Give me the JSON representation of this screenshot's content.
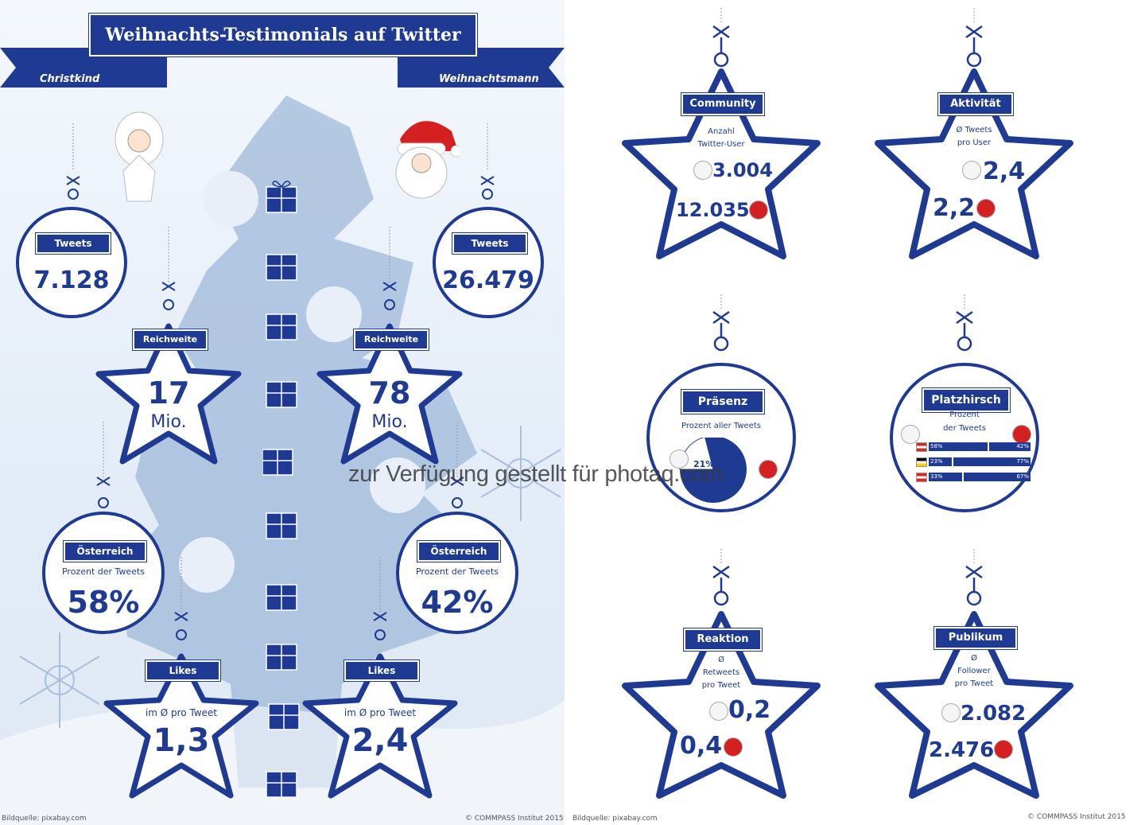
{
  "header": {
    "title": "Weihnachts-Testimonials auf Twitter",
    "left_label": "Christkind",
    "right_label": "Weihnachtsmann"
  },
  "left_panel": {
    "tweets": {
      "label": "Tweets",
      "christkind": "7.128",
      "weihnachtsmann": "26.479"
    },
    "reichweite": {
      "label": "Reichweite",
      "christkind_value": "17",
      "christkind_unit": "Mio.",
      "weihnachtsmann_value": "78",
      "weihnachtsmann_unit": "Mio."
    },
    "oesterreich": {
      "label": "Österreich",
      "sublabel": "Prozent der Tweets",
      "christkind": "58%",
      "weihnachtsmann": "42%"
    },
    "likes": {
      "label": "Likes",
      "sublabel": "im Ø pro Tweet",
      "christkind": "1,3",
      "weihnachtsmann": "2,4"
    },
    "footer_left": "Bildquelle: pixabay.com",
    "footer_right": "© COMMPASS Institut 2015"
  },
  "right_panel": {
    "community": {
      "label": "Community",
      "sub1": "Anzahl",
      "sub2": "Twitter-User",
      "christkind": "3.004",
      "weihnachtsmann": "12.035"
    },
    "aktivitaet": {
      "label": "Aktivität",
      "sub1": "Ø Tweets",
      "sub2": "pro User",
      "christkind": "2,4",
      "weihnachtsmann": "2,2"
    },
    "praesenz": {
      "label": "Präsenz",
      "sub1": "Prozent aller Tweets",
      "christkind_pct": "21%",
      "christkind_share": 0.21
    },
    "platzhirsch": {
      "label": "Platzhirsch",
      "sub1": "Prozent",
      "sub2": "der Tweets",
      "rows": [
        {
          "country": "AT",
          "left": "58%",
          "right": "42%",
          "left_share": 0.58,
          "flag": "#d52b1e"
        },
        {
          "country": "DE",
          "left": "23%",
          "right": "77%",
          "left_share": 0.23,
          "flag": "#000000"
        },
        {
          "country": "CH",
          "left": "33%",
          "right": "67%",
          "left_share": 0.33,
          "flag": "#e1251b"
        }
      ]
    },
    "reaktion": {
      "label": "Reaktion",
      "sub1": "Ø",
      "sub2": "Retweets",
      "sub3": "pro Tweet",
      "christkind": "0,2",
      "weihnachtsmann": "0,4"
    },
    "publikum": {
      "label": "Publikum",
      "sub1": "Ø",
      "sub2": "Follower",
      "sub3": "pro Tweet",
      "christkind": "2.082",
      "weihnachtsmann": "2.476"
    },
    "footer_left": "Bildquelle: pixabay.com",
    "footer_right": "© COMMPASS Institut 2015"
  },
  "watermark": "zur Verfügung gestellt für photaq.com",
  "colors": {
    "primary": "#1f3a93",
    "tree": "#9fb8d8",
    "background": "#e8eff8"
  }
}
